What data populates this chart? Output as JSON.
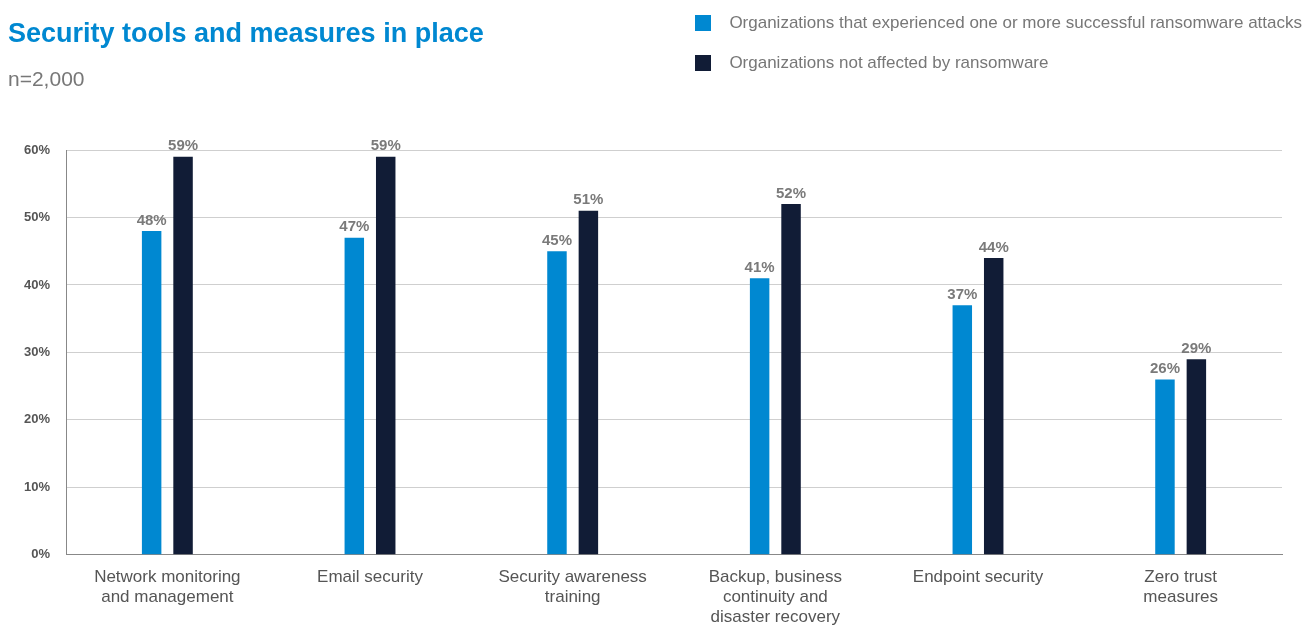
{
  "chart_data": {
    "type": "bar",
    "title": "Security tools and measures in place",
    "subtitle": "n=2,000",
    "categories": [
      "Network monitoring and management",
      "Email security",
      "Security awareness training",
      "Backup, business continuity and disaster recovery",
      "Endpoint security",
      "Zero trust measures"
    ],
    "series": [
      {
        "name": "Organizations that experienced one or more successful ransomware attacks",
        "color": "#0088d1",
        "values": [
          48,
          47,
          45,
          41,
          37,
          26
        ],
        "value_labels": [
          "48%",
          "47%",
          "45%",
          "41%",
          "37%",
          "26%"
        ]
      },
      {
        "name": "Organizations not affected by ransomware",
        "color": "#111c36",
        "values": [
          59,
          59,
          51,
          52,
          44,
          29
        ],
        "value_labels": [
          "59%",
          "59%",
          "51%",
          "52%",
          "44%",
          "29%"
        ]
      }
    ],
    "ylim": [
      0,
      60
    ],
    "yticks": [
      {
        "value": 0,
        "label": "0%"
      },
      {
        "value": 10,
        "label": "10%"
      },
      {
        "value": 20,
        "label": "20%"
      },
      {
        "value": 30,
        "label": "30%"
      },
      {
        "value": 40,
        "label": "40%"
      },
      {
        "value": 50,
        "label": "50%"
      },
      {
        "value": 60,
        "label": "60%"
      }
    ],
    "grid": "y",
    "legend": "top right"
  }
}
